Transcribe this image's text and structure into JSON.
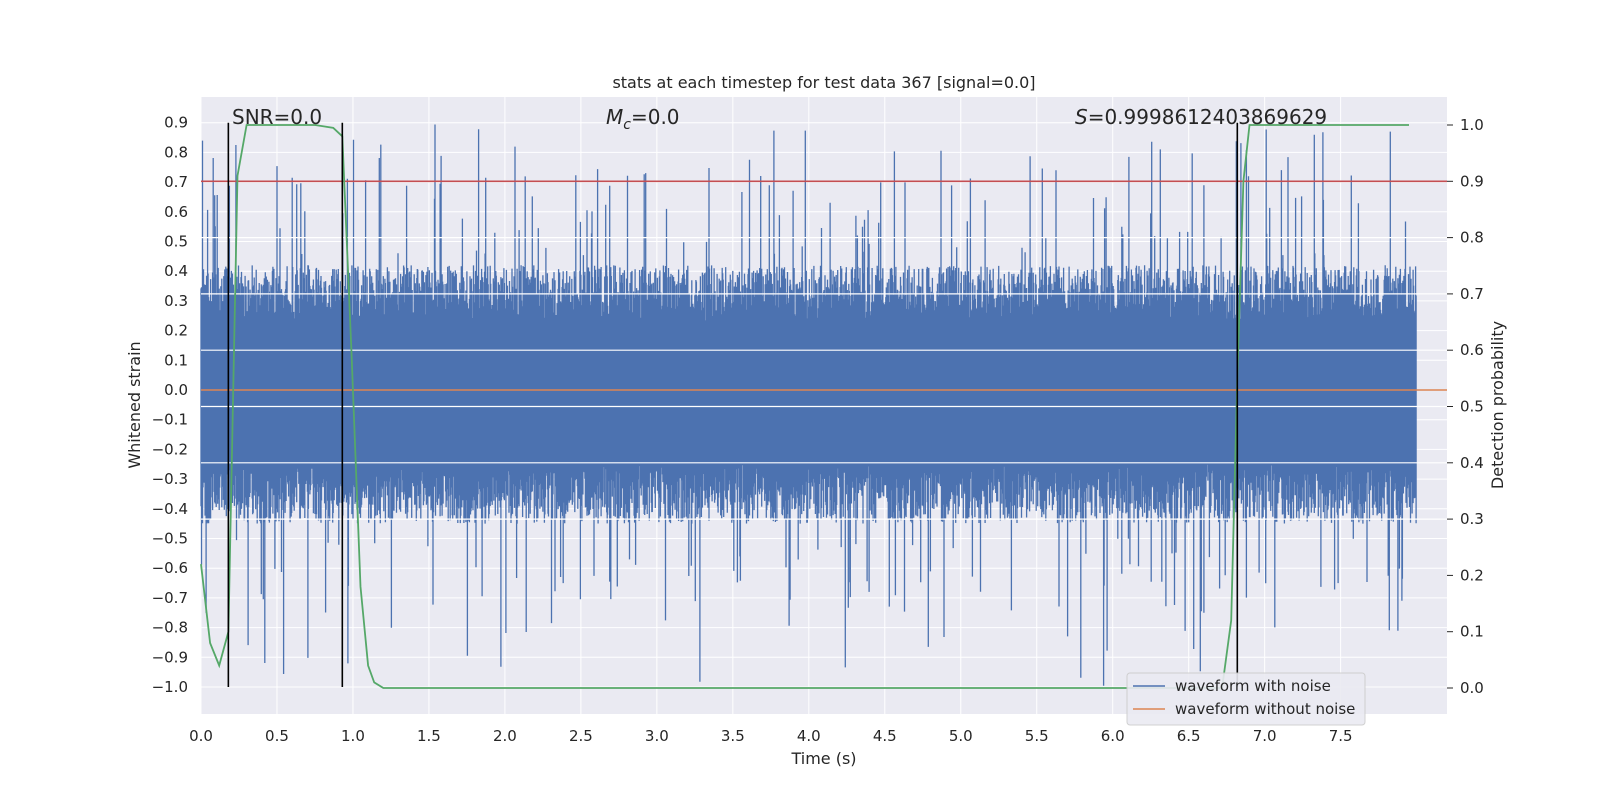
{
  "chart_data": {
    "type": "line",
    "title": "stats at each timestep for test data 367 [signal=0.0]",
    "xlabel": "Time (s)",
    "ylabel": "Whitened strain",
    "y2label": "Detection probability",
    "xlim": [
      0.0,
      8.0
    ],
    "ylim": [
      -1.09,
      1.02
    ],
    "y2lim": [
      -0.05,
      1.05
    ],
    "xticks": [
      0.0,
      0.5,
      1.0,
      1.5,
      2.0,
      2.5,
      3.0,
      3.5,
      4.0,
      4.5,
      5.0,
      5.5,
      6.0,
      6.5,
      7.0,
      7.5
    ],
    "xtick_labels": [
      "0.0",
      "0.5",
      "1.0",
      "1.5",
      "2.0",
      "2.5",
      "3.0",
      "3.5",
      "4.0",
      "4.5",
      "5.0",
      "5.5",
      "6.0",
      "6.5",
      "7.0",
      "7.5"
    ],
    "yticks": [
      0.9,
      0.8,
      0.7,
      0.6,
      0.5,
      0.4,
      0.3,
      0.2,
      0.1,
      0.0,
      -0.1,
      -0.2,
      -0.3,
      -0.4,
      -0.5,
      -0.6,
      -0.7,
      -0.8,
      -0.9,
      -1.0
    ],
    "ytick_labels": [
      "0.9",
      "0.8",
      "0.7",
      "0.6",
      "0.5",
      "0.4",
      "0.3",
      "0.2",
      "0.1",
      "0.0",
      "−0.1",
      "−0.2",
      "−0.3",
      "−0.4",
      "−0.5",
      "−0.6",
      "−0.7",
      "−0.8",
      "−0.9",
      "−1.0"
    ],
    "y2ticks": [
      1.0,
      0.9,
      0.8,
      0.7,
      0.6,
      0.5,
      0.4,
      0.3,
      0.2,
      0.1,
      0.0
    ],
    "y2tick_labels": [
      "1.0",
      "0.9",
      "0.8",
      "0.7",
      "0.6",
      "0.5",
      "0.4",
      "0.3",
      "0.2",
      "0.1",
      "0.0"
    ],
    "annotations": {
      "snr": "SNR=0.0",
      "mc_symbol": "M",
      "mc_sub": "c",
      "mc_value": "=0.0",
      "s_symbol": "S",
      "s_value": "=0.9998612403869629"
    },
    "noise_envelope": {
      "description": "dense noisy whitened strain, mostly within +/-0.4 with spikes to about +/-0.9",
      "typical_upper": 0.42,
      "typical_lower": -0.45,
      "max_spike": 0.9,
      "min_spike": -1.0
    },
    "threshold_line": {
      "y": 0.9,
      "axis": "y2"
    },
    "vertical_markers": [
      0.18,
      0.93,
      6.82
    ],
    "vertical_marker_range": [
      -1.0,
      0.9
    ],
    "probability_curve": {
      "x": [
        0.0,
        0.06,
        0.12,
        0.18,
        0.24,
        0.3,
        0.36,
        0.45,
        0.6,
        0.75,
        0.87,
        0.93,
        0.99,
        1.05,
        1.1,
        1.14,
        1.2,
        1.5,
        6.5,
        6.72,
        6.78,
        6.82,
        6.86,
        6.9,
        7.0,
        7.95
      ],
      "y": [
        0.22,
        0.08,
        0.04,
        0.1,
        0.91,
        1.0,
        1.0,
        1.0,
        1.0,
        1.0,
        0.995,
        0.98,
        0.6,
        0.18,
        0.04,
        0.01,
        0.0,
        0.0,
        0.0,
        0.0,
        0.12,
        0.55,
        0.9,
        1.0,
        1.0,
        1.0
      ]
    },
    "series": [
      {
        "name": "waveform with noise",
        "color": "#4c72b0"
      },
      {
        "name": "waveform without noise",
        "color": "#dd8452",
        "constant_y": 0.0
      },
      {
        "name": "detection probability",
        "color": "#55a868"
      },
      {
        "name": "threshold",
        "color": "#c44e52"
      }
    ],
    "legend": {
      "placement": "lower-right",
      "entries": [
        {
          "label": "waveform with noise",
          "color": "#4c72b0"
        },
        {
          "label": "waveform without noise",
          "color": "#dd8452"
        }
      ]
    },
    "colors": {
      "axes_bg": "#eaeaf2",
      "grid": "#ffffff",
      "marker": "#000000"
    }
  }
}
